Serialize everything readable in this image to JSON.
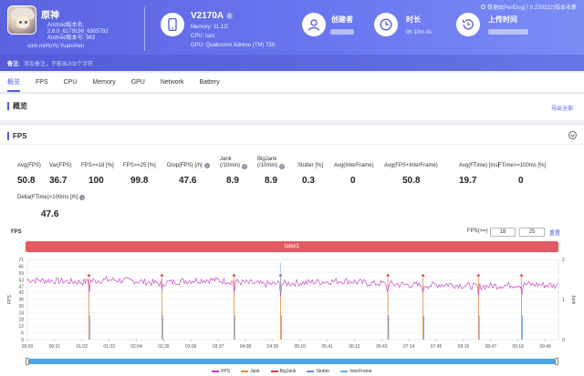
{
  "header": {
    "watermark": "数据由PerfDog(7.0.220332)版本收集",
    "app": {
      "name": "原神",
      "android_version": "Android版本名:",
      "version_name": "2.6.0_6179196_6305792",
      "android_version_code": "Android版本号: 363",
      "package": "com.miHoYo.Yuanshen"
    },
    "device": {
      "name": "V2170A",
      "memory": "Memory: 11.1G",
      "cpu": "CPU: taro",
      "gpu": "GPU: Qualcomm Adreno (TM) 730"
    },
    "creator_label": "创建者",
    "duration_label": "时长",
    "duration_value": "0h 10m 4s",
    "upload_label": "上传时间",
    "note_label": "备注:",
    "note_text": "添加备注，不能出200个字符"
  },
  "tabs": [
    "概览",
    "FPS",
    "CPU",
    "Memory",
    "GPU",
    "Network",
    "Battery"
  ],
  "overview": {
    "title": "概览",
    "export": "导出全部"
  },
  "fps_section": {
    "title": "FPS",
    "metrics": [
      {
        "label": "Avg(FPS)",
        "value": "50.8"
      },
      {
        "label": "Var(FPS)",
        "value": "36.7"
      },
      {
        "label": "FPS>=18 [%]",
        "value": "100"
      },
      {
        "label": "FPS>=25 [%]",
        "value": "99.8"
      },
      {
        "label": "Drop(FPS) [/h]",
        "value": "47.6"
      },
      {
        "label": "Jank",
        "label2": "(/10min)",
        "value": "8.9"
      },
      {
        "label": "BigJank",
        "label2": "(/10min)",
        "value": "8.9"
      },
      {
        "label": "Stutter [%]",
        "value": "0.3"
      },
      {
        "label": "Avg(InterFrame)",
        "value": "0"
      },
      {
        "label": "Avg(FPS+InterFrame)",
        "value": "50.8"
      },
      {
        "label": "Avg(FTime) [ms]",
        "value": "19.7"
      },
      {
        "label": "FTime>=100ms [%]",
        "value": "0"
      }
    ],
    "delta_label": "Delta(FTime)>100ms [/h]",
    "delta_value": "47.6"
  },
  "chart_ui": {
    "title": "FPS",
    "fps_range_label": "FPS(>=)",
    "fps_min": "18",
    "fps_max": "25",
    "reset": "重置",
    "label_bar": "label1"
  },
  "colors": {
    "accent": "#4f5ee8",
    "fps": "#c23cc2",
    "jank": "#f0873a",
    "bigjank": "#e0403a",
    "stutter": "#5b8fd6",
    "interframe": "#6fb0e8",
    "label_bar": "#e45a63"
  },
  "chart_data": {
    "type": "line",
    "title": "FPS",
    "ylabel": "FPS",
    "y2label": "Jank",
    "ylim": [
      0,
      71
    ],
    "yticks": [
      0,
      6,
      12,
      18,
      24,
      30,
      36,
      42,
      47,
      53,
      59,
      65,
      71
    ],
    "y2lim": [
      0,
      2
    ],
    "y2ticks": [
      0,
      1,
      2
    ],
    "x_ticks": [
      "00:00",
      "00:31",
      "01:02",
      "01:33",
      "02:04",
      "02:35",
      "03:06",
      "03:37",
      "04:08",
      "04:39",
      "05:10",
      "05:41",
      "06:12",
      "06:43",
      "07:14",
      "07:45",
      "08:16",
      "08:47",
      "09:18",
      "09:49"
    ],
    "duration_s": 604,
    "fps_series": {
      "name": "FPS",
      "x": [
        0,
        30,
        60,
        90,
        120,
        150,
        180,
        210,
        240,
        270,
        300,
        330,
        360,
        390,
        420,
        450,
        480,
        510,
        540,
        570,
        600
      ],
      "y": [
        53,
        52,
        51,
        53,
        52,
        50,
        52,
        53,
        51,
        49,
        50,
        51,
        52,
        50,
        49,
        48,
        49,
        47,
        48,
        49,
        48
      ]
    },
    "jank_events_s": [
      70,
      153,
      235,
      288,
      410,
      450,
      513,
      562
    ],
    "bigjank_events_s": [
      70,
      153,
      235,
      288,
      410,
      450,
      513,
      562
    ],
    "stutter_events_s": [
      70,
      153,
      235,
      288,
      410,
      450,
      513,
      562
    ],
    "legend": [
      "FPS",
      "Jank",
      "BigJank",
      "Stutter",
      "InterFrame"
    ]
  }
}
